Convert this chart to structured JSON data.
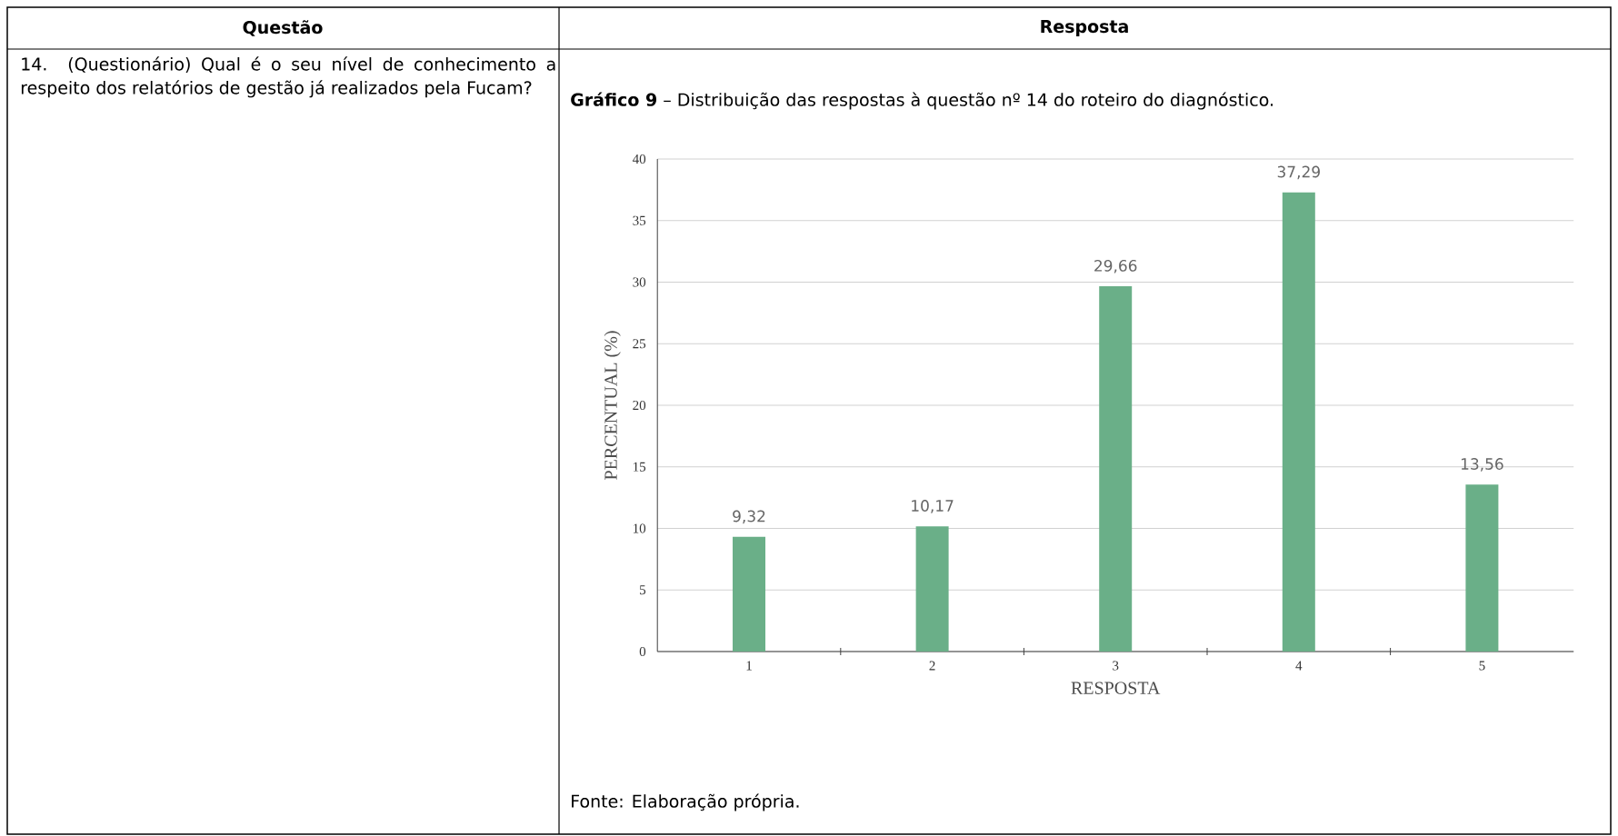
{
  "chart_data": {
    "type": "bar",
    "title": "**Gráfico 9** – Distribuição das respostas à questão nº 14 do roteiro do diagnóstico.",
    "xlabel": "RESPOSTA",
    "ylabel": "PERCENTUAL (%)",
    "categories": [
      "1",
      "2",
      "3",
      "4",
      "5"
    ],
    "values": [
      9.32,
      10.17,
      29.66,
      37.29,
      13.56
    ],
    "value_labels": [
      "9,32",
      "10,17",
      "29,66",
      "37,29",
      "13,56"
    ],
    "color": "#6aaf88",
    "ylim": [
      0,
      40
    ],
    "yticks": [
      0,
      5,
      10,
      15,
      20,
      25,
      30,
      35,
      40
    ],
    "grid": "y",
    "annotations": [
      "Questão",
      "Resposta",
      "14. (Questionário) Qual é o seu nível de conhecimento a respeito dos relatórios de gestão já realizados pela Fucam?",
      "Fonte: Elaboração própria."
    ]
  }
}
